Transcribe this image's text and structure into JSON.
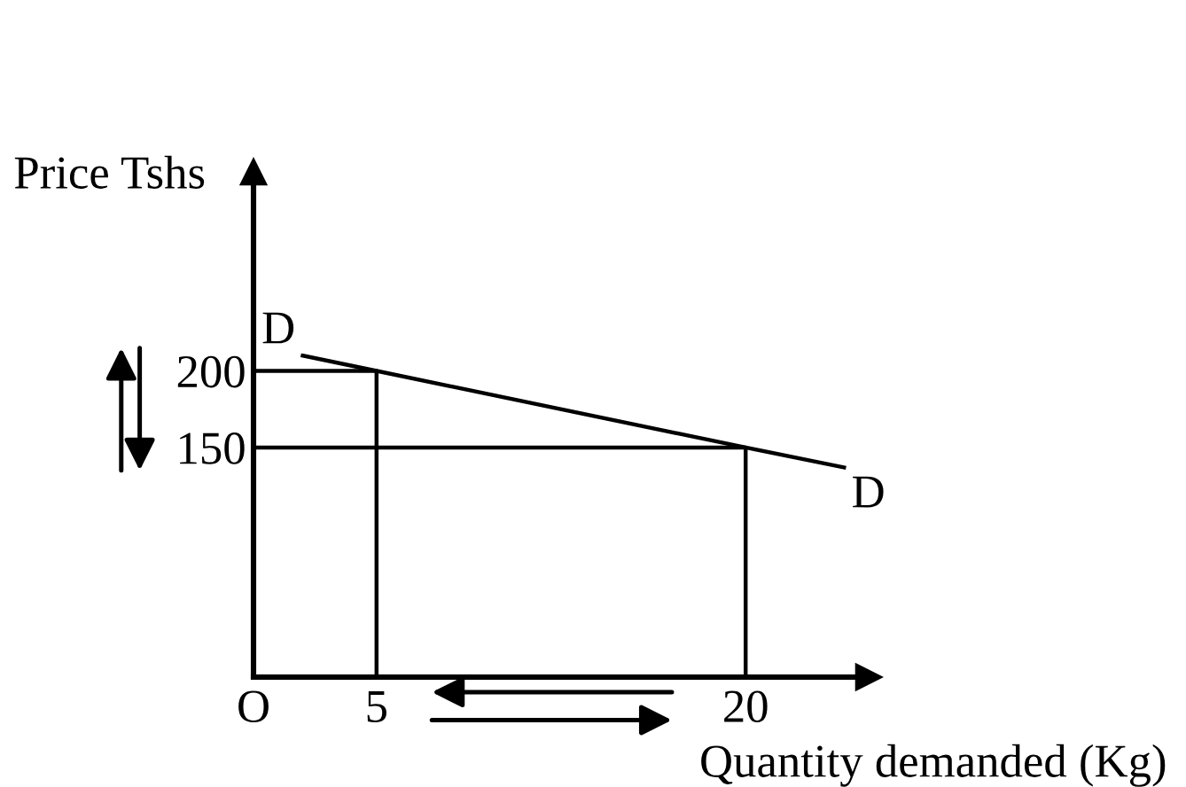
{
  "chart_data": {
    "type": "line",
    "xlabel": "Quantity demanded (Kg)",
    "ylabel": "Price Tshs",
    "xlim": [
      0,
      25
    ],
    "ylim": [
      0,
      330
    ],
    "xticks": [
      {
        "value": 0,
        "label": "O"
      },
      5,
      20
    ],
    "yticks": [
      150,
      200
    ],
    "series": [
      {
        "color": "#000000",
        "x": [
          2,
          5,
          20,
          24
        ],
        "values": [
          210,
          200,
          150,
          137
        ]
      },
      {
        "color": "#000000",
        "x": [
          0,
          5,
          5
        ],
        "values": [
          200,
          200,
          0
        ]
      },
      {
        "color": "#000000",
        "x": [
          0,
          20,
          20
        ],
        "values": [
          150,
          150,
          0
        ]
      }
    ],
    "annotations": [
      {
        "text": "D",
        "x": 2,
        "y": 210
      },
      {
        "text": "D",
        "x": 24,
        "y": 137
      }
    ],
    "grid": false,
    "marker": "none",
    "line_style": "solid"
  }
}
